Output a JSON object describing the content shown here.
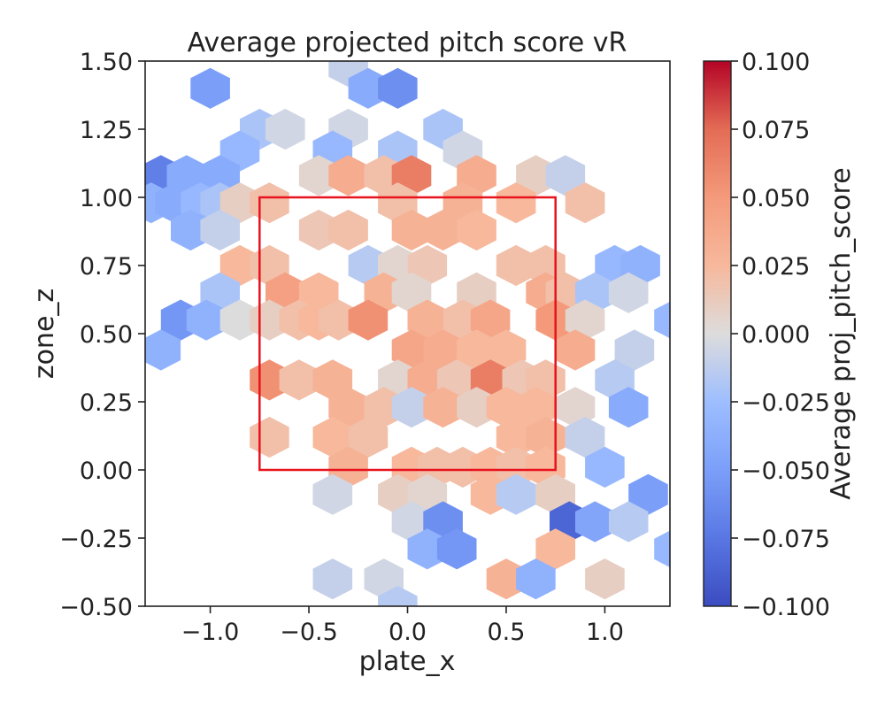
{
  "chart_data": {
    "type": "heatmap",
    "subtype": "hexbin",
    "title": "Average projected pitch score vR",
    "xlabel": "plate_x",
    "ylabel": "zone_z",
    "xlim": [
      -1.33,
      1.33
    ],
    "ylim": [
      -0.5,
      1.5
    ],
    "xticks": [
      -1.0,
      -0.5,
      0.0,
      0.5,
      1.0
    ],
    "xtick_labels": [
      "−1.0",
      "−0.5",
      "0.0",
      "0.5",
      "1.0"
    ],
    "yticks": [
      1.5,
      1.25,
      1.0,
      0.75,
      0.5,
      0.25,
      0.0,
      -0.25,
      -0.5
    ],
    "ytick_labels": [
      "1.50",
      "1.25",
      "1.00",
      "0.75",
      "0.50",
      "0.25",
      "0.00",
      "−0.25",
      "−0.50"
    ],
    "grid": false,
    "colormap": "coolwarm",
    "colorbar": {
      "label": "Average proj_pitch_score",
      "range": [
        -0.1,
        0.1
      ],
      "ticks": [
        0.1,
        0.075,
        0.05,
        0.025,
        0.0,
        -0.025,
        -0.05,
        -0.075,
        -0.1
      ],
      "tick_labels": [
        "0.100",
        "0.075",
        "0.050",
        "0.025",
        "0.000",
        "−0.025",
        "−0.050",
        "−0.075",
        "−0.100"
      ]
    },
    "strike_zone": {
      "x": [
        -0.75,
        0.75
      ],
      "z": [
        0.0,
        1.0
      ],
      "color": "#e8131d"
    },
    "hex_size_x": 0.1,
    "hex_size_z": 0.075,
    "cells": [
      {
        "x": -0.3,
        "z": 1.48,
        "v": -0.01
      },
      {
        "x": -0.2,
        "z": 1.4,
        "v": -0.04
      },
      {
        "x": -0.05,
        "z": 1.4,
        "v": -0.06
      },
      {
        "x": -1.0,
        "z": 1.4,
        "v": -0.05
      },
      {
        "x": -0.75,
        "z": 1.25,
        "v": -0.02
      },
      {
        "x": -0.62,
        "z": 1.25,
        "v": -0.005
      },
      {
        "x": -0.3,
        "z": 1.25,
        "v": -0.005
      },
      {
        "x": 0.18,
        "z": 1.25,
        "v": -0.02
      },
      {
        "x": -0.85,
        "z": 1.17,
        "v": -0.03
      },
      {
        "x": -0.38,
        "z": 1.17,
        "v": -0.03
      },
      {
        "x": -0.05,
        "z": 1.17,
        "v": -0.02
      },
      {
        "x": 0.28,
        "z": 1.17,
        "v": -0.005
      },
      {
        "x": -1.25,
        "z": 1.08,
        "v": -0.07
      },
      {
        "x": -1.12,
        "z": 1.08,
        "v": -0.04
      },
      {
        "x": -0.95,
        "z": 1.08,
        "v": -0.04
      },
      {
        "x": -0.45,
        "z": 1.08,
        "v": 0.005
      },
      {
        "x": -0.3,
        "z": 1.08,
        "v": 0.035
      },
      {
        "x": -0.12,
        "z": 1.08,
        "v": 0.02
      },
      {
        "x": 0.02,
        "z": 1.08,
        "v": 0.065
      },
      {
        "x": 0.35,
        "z": 1.08,
        "v": 0.035
      },
      {
        "x": 0.65,
        "z": 1.08,
        "v": 0.01
      },
      {
        "x": 0.8,
        "z": 1.08,
        "v": -0.01
      },
      {
        "x": -1.3,
        "z": 0.98,
        "v": -0.035
      },
      {
        "x": -1.18,
        "z": 0.98,
        "v": -0.04
      },
      {
        "x": -1.05,
        "z": 0.98,
        "v": -0.03
      },
      {
        "x": -0.95,
        "z": 0.98,
        "v": -0.02
      },
      {
        "x": -0.85,
        "z": 0.98,
        "v": 0.01
      },
      {
        "x": -0.7,
        "z": 0.98,
        "v": 0.02
      },
      {
        "x": -0.05,
        "z": 0.98,
        "v": 0.02
      },
      {
        "x": 0.28,
        "z": 0.98,
        "v": 0.03
      },
      {
        "x": 0.55,
        "z": 0.98,
        "v": 0.025
      },
      {
        "x": 0.9,
        "z": 0.98,
        "v": 0.02
      },
      {
        "x": -1.1,
        "z": 0.88,
        "v": -0.035
      },
      {
        "x": -0.95,
        "z": 0.88,
        "v": -0.01
      },
      {
        "x": -0.45,
        "z": 0.88,
        "v": 0.015
      },
      {
        "x": -0.3,
        "z": 0.88,
        "v": 0.02
      },
      {
        "x": 0.02,
        "z": 0.88,
        "v": 0.03
      },
      {
        "x": 0.18,
        "z": 0.88,
        "v": 0.03
      },
      {
        "x": 0.35,
        "z": 0.88,
        "v": 0.025
      },
      {
        "x": -0.85,
        "z": 0.75,
        "v": 0.025
      },
      {
        "x": -0.7,
        "z": 0.75,
        "v": 0.02
      },
      {
        "x": -0.2,
        "z": 0.75,
        "v": -0.015
      },
      {
        "x": -0.05,
        "z": 0.75,
        "v": 0.005
      },
      {
        "x": 0.1,
        "z": 0.75,
        "v": 0.015
      },
      {
        "x": 0.55,
        "z": 0.75,
        "v": 0.02
      },
      {
        "x": 0.7,
        "z": 0.75,
        "v": 0.02
      },
      {
        "x": 1.05,
        "z": 0.75,
        "v": -0.03
      },
      {
        "x": 1.18,
        "z": 0.75,
        "v": -0.035
      },
      {
        "x": -0.95,
        "z": 0.65,
        "v": -0.02
      },
      {
        "x": -0.62,
        "z": 0.65,
        "v": 0.045
      },
      {
        "x": -0.45,
        "z": 0.65,
        "v": 0.025
      },
      {
        "x": -0.12,
        "z": 0.65,
        "v": 0.03
      },
      {
        "x": 0.02,
        "z": 0.65,
        "v": 0.005
      },
      {
        "x": 0.35,
        "z": 0.65,
        "v": 0.01
      },
      {
        "x": 0.7,
        "z": 0.65,
        "v": 0.035
      },
      {
        "x": 0.8,
        "z": 0.65,
        "v": 0.02
      },
      {
        "x": 0.95,
        "z": 0.65,
        "v": -0.02
      },
      {
        "x": 1.12,
        "z": 0.65,
        "v": -0.005
      },
      {
        "x": -1.15,
        "z": 0.55,
        "v": -0.055
      },
      {
        "x": -1.02,
        "z": 0.55,
        "v": -0.035
      },
      {
        "x": -0.85,
        "z": 0.55,
        "v": 0.0
      },
      {
        "x": -0.7,
        "z": 0.55,
        "v": 0.01
      },
      {
        "x": -0.55,
        "z": 0.55,
        "v": 0.02
      },
      {
        "x": -0.45,
        "z": 0.55,
        "v": 0.025
      },
      {
        "x": -0.35,
        "z": 0.55,
        "v": 0.02
      },
      {
        "x": -0.2,
        "z": 0.55,
        "v": 0.055
      },
      {
        "x": 0.1,
        "z": 0.55,
        "v": 0.03
      },
      {
        "x": 0.28,
        "z": 0.55,
        "v": 0.02
      },
      {
        "x": 0.42,
        "z": 0.55,
        "v": 0.04
      },
      {
        "x": 0.75,
        "z": 0.55,
        "v": 0.05
      },
      {
        "x": 0.9,
        "z": 0.55,
        "v": 0.005
      },
      {
        "x": 1.35,
        "z": 0.55,
        "v": -0.03
      },
      {
        "x": -1.25,
        "z": 0.44,
        "v": -0.035
      },
      {
        "x": 0.02,
        "z": 0.44,
        "v": 0.04
      },
      {
        "x": 0.18,
        "z": 0.44,
        "v": 0.035
      },
      {
        "x": 0.35,
        "z": 0.44,
        "v": 0.025
      },
      {
        "x": 0.5,
        "z": 0.44,
        "v": 0.025
      },
      {
        "x": 0.85,
        "z": 0.44,
        "v": 0.035
      },
      {
        "x": 1.15,
        "z": 0.44,
        "v": -0.01
      },
      {
        "x": -0.7,
        "z": 0.33,
        "v": 0.055
      },
      {
        "x": -0.55,
        "z": 0.33,
        "v": 0.02
      },
      {
        "x": -0.38,
        "z": 0.33,
        "v": 0.03
      },
      {
        "x": -0.05,
        "z": 0.33,
        "v": 0.005
      },
      {
        "x": 0.1,
        "z": 0.33,
        "v": 0.035
      },
      {
        "x": 0.25,
        "z": 0.33,
        "v": 0.015
      },
      {
        "x": 0.42,
        "z": 0.33,
        "v": 0.065
      },
      {
        "x": 0.58,
        "z": 0.33,
        "v": 0.015
      },
      {
        "x": 0.7,
        "z": 0.33,
        "v": 0.02
      },
      {
        "x": 1.05,
        "z": 0.33,
        "v": -0.015
      },
      {
        "x": -0.3,
        "z": 0.23,
        "v": 0.03
      },
      {
        "x": -0.12,
        "z": 0.23,
        "v": 0.02
      },
      {
        "x": 0.02,
        "z": 0.23,
        "v": -0.01
      },
      {
        "x": 0.18,
        "z": 0.23,
        "v": 0.03
      },
      {
        "x": 0.35,
        "z": 0.23,
        "v": 0.01
      },
      {
        "x": 0.5,
        "z": 0.23,
        "v": 0.025
      },
      {
        "x": 0.65,
        "z": 0.23,
        "v": 0.025
      },
      {
        "x": 0.85,
        "z": 0.23,
        "v": 0.005
      },
      {
        "x": 1.12,
        "z": 0.23,
        "v": -0.04
      },
      {
        "x": -0.7,
        "z": 0.12,
        "v": 0.02
      },
      {
        "x": -0.38,
        "z": 0.12,
        "v": 0.025
      },
      {
        "x": -0.2,
        "z": 0.12,
        "v": 0.02
      },
      {
        "x": 0.55,
        "z": 0.12,
        "v": 0.025
      },
      {
        "x": 0.7,
        "z": 0.12,
        "v": 0.03
      },
      {
        "x": 0.9,
        "z": 0.12,
        "v": -0.01
      },
      {
        "x": -0.3,
        "z": 0.01,
        "v": 0.03
      },
      {
        "x": 0.02,
        "z": 0.01,
        "v": 0.025
      },
      {
        "x": 0.15,
        "z": 0.01,
        "v": 0.02
      },
      {
        "x": 0.28,
        "z": 0.01,
        "v": 0.02
      },
      {
        "x": 0.42,
        "z": 0.01,
        "v": 0.025
      },
      {
        "x": 0.55,
        "z": 0.01,
        "v": 0.02
      },
      {
        "x": 0.7,
        "z": 0.01,
        "v": 0.025
      },
      {
        "x": 1.0,
        "z": 0.01,
        "v": -0.03
      },
      {
        "x": -0.38,
        "z": -0.09,
        "v": -0.005
      },
      {
        "x": -0.05,
        "z": -0.09,
        "v": 0.01
      },
      {
        "x": 0.1,
        "z": -0.09,
        "v": 0.005
      },
      {
        "x": 0.42,
        "z": -0.09,
        "v": 0.025
      },
      {
        "x": 0.55,
        "z": -0.09,
        "v": -0.015
      },
      {
        "x": 0.75,
        "z": -0.09,
        "v": 0.01
      },
      {
        "x": 1.22,
        "z": -0.09,
        "v": -0.05
      },
      {
        "x": 0.02,
        "z": -0.19,
        "v": -0.005
      },
      {
        "x": 0.18,
        "z": -0.19,
        "v": -0.06
      },
      {
        "x": 0.82,
        "z": -0.19,
        "v": -0.085
      },
      {
        "x": 0.95,
        "z": -0.19,
        "v": -0.045
      },
      {
        "x": 1.12,
        "z": -0.19,
        "v": -0.015
      },
      {
        "x": 0.1,
        "z": -0.29,
        "v": -0.035
      },
      {
        "x": 0.25,
        "z": -0.29,
        "v": -0.055
      },
      {
        "x": 0.75,
        "z": -0.29,
        "v": 0.025
      },
      {
        "x": 1.35,
        "z": -0.29,
        "v": -0.03
      },
      {
        "x": -0.38,
        "z": -0.4,
        "v": -0.01
      },
      {
        "x": -0.12,
        "z": -0.4,
        "v": -0.005
      },
      {
        "x": 0.5,
        "z": -0.4,
        "v": 0.03
      },
      {
        "x": 0.65,
        "z": -0.4,
        "v": -0.035
      },
      {
        "x": 1.0,
        "z": -0.4,
        "v": 0.01
      },
      {
        "x": -0.05,
        "z": -0.5,
        "v": -0.015
      }
    ]
  }
}
